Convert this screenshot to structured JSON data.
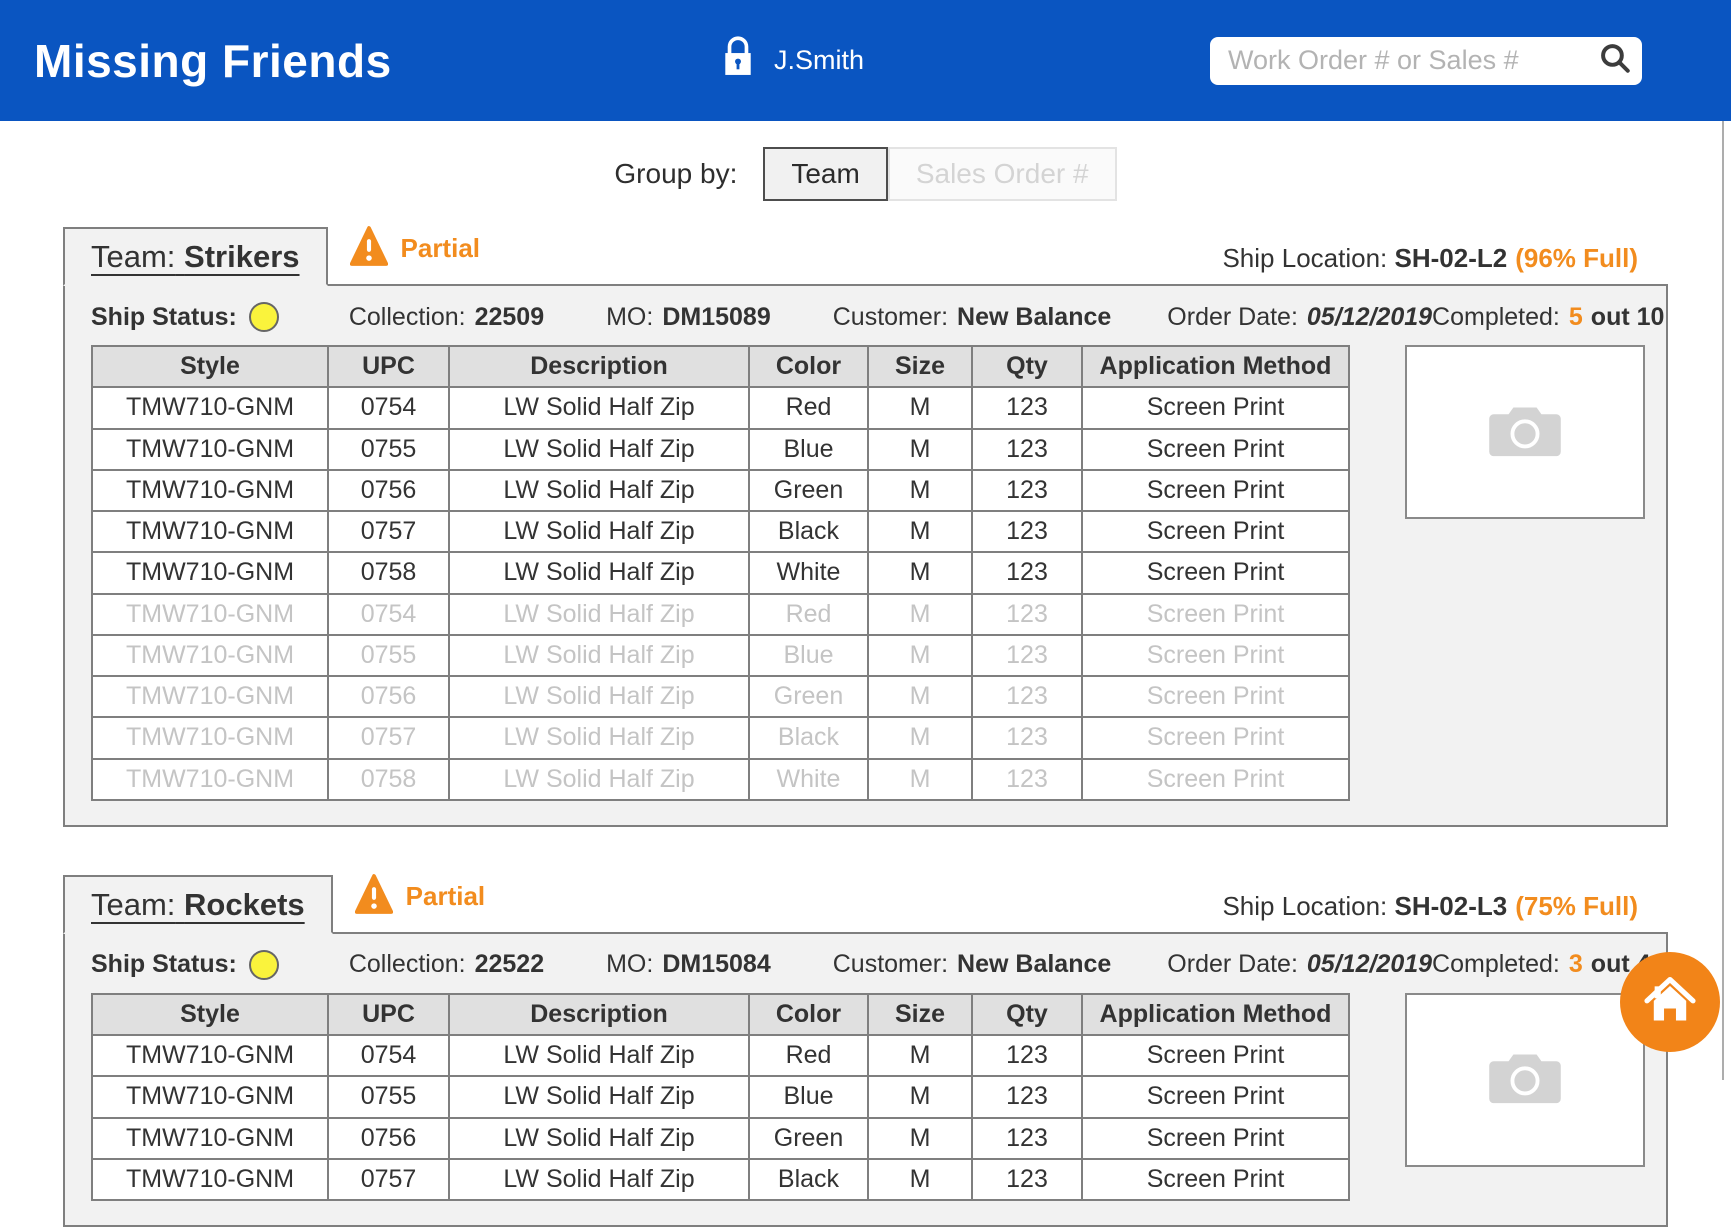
{
  "header": {
    "app_title": "Missing Friends",
    "user_name": "J.Smith",
    "search_placeholder": "Work Order # or Sales #"
  },
  "group_by": {
    "label": "Group by:",
    "options": [
      {
        "label": "Team",
        "active": true
      },
      {
        "label": "Sales Order #",
        "active": false
      }
    ]
  },
  "colors": {
    "header_blue": "#0A55C1",
    "accent_orange": "#F28C1E",
    "status_yellow": "#FAF33C",
    "card_background": "#F2F2F2"
  },
  "table": {
    "headers": [
      "Style",
      "UPC",
      "Description",
      "Color",
      "Size",
      "Qty",
      "Application Method"
    ],
    "row_keys": [
      "style",
      "upc",
      "description",
      "color",
      "size",
      "qty",
      "method"
    ]
  },
  "teams": [
    {
      "team_label": "Team:",
      "team_name": "Strikers",
      "warning_label": "Partial",
      "ship_location_label": "Ship Location:",
      "ship_location": "SH-02-L2",
      "capacity": "(96% Full)",
      "ship_status_label": "Ship Status:",
      "ship_status_color": "#FAF33C",
      "collection_label": "Collection:",
      "collection": "22509",
      "mo_label": "MO:",
      "mo": "DM15089",
      "customer_label": "Customer:",
      "customer": "New Balance",
      "order_date_label": "Order Date:",
      "order_date": "05/12/2019",
      "completed_label": "Completed:",
      "completed_count": "5",
      "completed_rest": "out 10",
      "rows": [
        {
          "style": "TMW710-GNM",
          "upc": "0754",
          "description": "LW Solid Half Zip",
          "color": "Red",
          "size": "M",
          "qty": "123",
          "method": "Screen Print",
          "faded": false
        },
        {
          "style": "TMW710-GNM",
          "upc": "0755",
          "description": "LW Solid Half Zip",
          "color": "Blue",
          "size": "M",
          "qty": "123",
          "method": "Screen Print",
          "faded": false
        },
        {
          "style": "TMW710-GNM",
          "upc": "0756",
          "description": "LW Solid Half Zip",
          "color": "Green",
          "size": "M",
          "qty": "123",
          "method": "Screen Print",
          "faded": false
        },
        {
          "style": "TMW710-GNM",
          "upc": "0757",
          "description": "LW Solid Half Zip",
          "color": "Black",
          "size": "M",
          "qty": "123",
          "method": "Screen Print",
          "faded": false
        },
        {
          "style": "TMW710-GNM",
          "upc": "0758",
          "description": "LW Solid Half Zip",
          "color": "White",
          "size": "M",
          "qty": "123",
          "method": "Screen Print",
          "faded": false
        },
        {
          "style": "TMW710-GNM",
          "upc": "0754",
          "description": "LW Solid Half Zip",
          "color": "Red",
          "size": "M",
          "qty": "123",
          "method": "Screen Print",
          "faded": true
        },
        {
          "style": "TMW710-GNM",
          "upc": "0755",
          "description": "LW Solid Half Zip",
          "color": "Blue",
          "size": "M",
          "qty": "123",
          "method": "Screen Print",
          "faded": true
        },
        {
          "style": "TMW710-GNM",
          "upc": "0756",
          "description": "LW Solid Half Zip",
          "color": "Green",
          "size": "M",
          "qty": "123",
          "method": "Screen Print",
          "faded": true
        },
        {
          "style": "TMW710-GNM",
          "upc": "0757",
          "description": "LW Solid Half Zip",
          "color": "Black",
          "size": "M",
          "qty": "123",
          "method": "Screen Print",
          "faded": true
        },
        {
          "style": "TMW710-GNM",
          "upc": "0758",
          "description": "LW Solid Half Zip",
          "color": "White",
          "size": "M",
          "qty": "123",
          "method": "Screen Print",
          "faded": true
        }
      ]
    },
    {
      "team_label": "Team:",
      "team_name": "Rockets",
      "warning_label": "Partial",
      "ship_location_label": "Ship Location:",
      "ship_location": "SH-02-L3",
      "capacity": "(75% Full)",
      "ship_status_label": "Ship Status:",
      "ship_status_color": "#FAF33C",
      "collection_label": "Collection:",
      "collection": "22522",
      "mo_label": "MO:",
      "mo": "DM15084",
      "customer_label": "Customer:",
      "customer": "New Balance",
      "order_date_label": "Order Date:",
      "order_date": "05/12/2019",
      "completed_label": "Completed:",
      "completed_count": "3",
      "completed_rest": "out 4",
      "rows": [
        {
          "style": "TMW710-GNM",
          "upc": "0754",
          "description": "LW Solid Half Zip",
          "color": "Red",
          "size": "M",
          "qty": "123",
          "method": "Screen Print",
          "faded": false
        },
        {
          "style": "TMW710-GNM",
          "upc": "0755",
          "description": "LW Solid Half Zip",
          "color": "Blue",
          "size": "M",
          "qty": "123",
          "method": "Screen Print",
          "faded": false
        },
        {
          "style": "TMW710-GNM",
          "upc": "0756",
          "description": "LW Solid Half Zip",
          "color": "Green",
          "size": "M",
          "qty": "123",
          "method": "Screen Print",
          "faded": false
        },
        {
          "style": "TMW710-GNM",
          "upc": "0757",
          "description": "LW Solid Half Zip",
          "color": "Black",
          "size": "M",
          "qty": "123",
          "method": "Screen Print",
          "faded": false
        }
      ]
    }
  ]
}
